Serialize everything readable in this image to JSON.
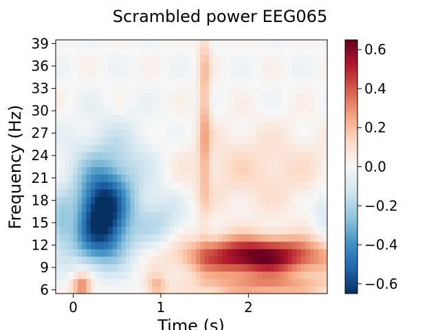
{
  "chart_data": {
    "type": "heatmap",
    "title": "Scrambled power EEG065",
    "xlabel": "Time (s)",
    "ylabel": "Frequency (Hz)",
    "xlim": [
      -0.2,
      2.9
    ],
    "ylim": [
      5.5,
      39.5
    ],
    "x_ticks": [
      0,
      1,
      2
    ],
    "x_tick_labels": [
      "0",
      "1",
      "2"
    ],
    "y_ticks": [
      6,
      9,
      12,
      15,
      18,
      21,
      24,
      27,
      30,
      33,
      36,
      39
    ],
    "y_tick_labels": [
      "6",
      "9",
      "12",
      "15",
      "18",
      "21",
      "24",
      "27",
      "30",
      "33",
      "36",
      "39"
    ],
    "colorbar": {
      "colormap": "RdBu_r",
      "vmin": -0.65,
      "vmax": 0.65,
      "ticks": [
        -0.6,
        -0.4,
        -0.2,
        0.0,
        0.2,
        0.4,
        0.6
      ],
      "tick_labels": [
        "−0.6",
        "−0.4",
        "−0.2",
        "0.0",
        "0.2",
        "0.4",
        "0.6"
      ]
    },
    "features": [
      {
        "t": 0.33,
        "f": 16.5,
        "st": 0.2,
        "sf": 3.5,
        "amp": -0.62
      },
      {
        "t": 0.45,
        "f": 22.0,
        "st": 0.35,
        "sf": 4.5,
        "amp": -0.2
      },
      {
        "t": 0.3,
        "f": 12.0,
        "st": 0.3,
        "sf": 2.5,
        "amp": -0.22
      },
      {
        "t": 1.0,
        "f": 15.5,
        "st": 0.2,
        "sf": 2.5,
        "amp": -0.15
      },
      {
        "t": 2.1,
        "f": 10.5,
        "st": 0.55,
        "sf": 1.8,
        "amp": 0.66
      },
      {
        "t": 1.5,
        "f": 30.0,
        "st": 0.05,
        "sf": 10.0,
        "amp": 0.22
      },
      {
        "t": 2.1,
        "f": 22.0,
        "st": 0.7,
        "sf": 4.0,
        "amp": 0.12
      },
      {
        "t": 0.1,
        "f": 6.5,
        "st": 0.08,
        "sf": 1.2,
        "amp": 0.35
      },
      {
        "t": 0.95,
        "f": 6.5,
        "st": 0.08,
        "sf": 1.2,
        "amp": 0.2
      },
      {
        "t": 2.2,
        "f": 6.5,
        "st": 0.6,
        "sf": 1.0,
        "amp": 0.25
      },
      {
        "t": -0.15,
        "f": 15.0,
        "st": 0.08,
        "sf": 2.5,
        "amp": -0.18
      },
      {
        "t": 2.85,
        "f": 17.0,
        "st": 0.08,
        "sf": 2.5,
        "amp": -0.12
      }
    ]
  }
}
